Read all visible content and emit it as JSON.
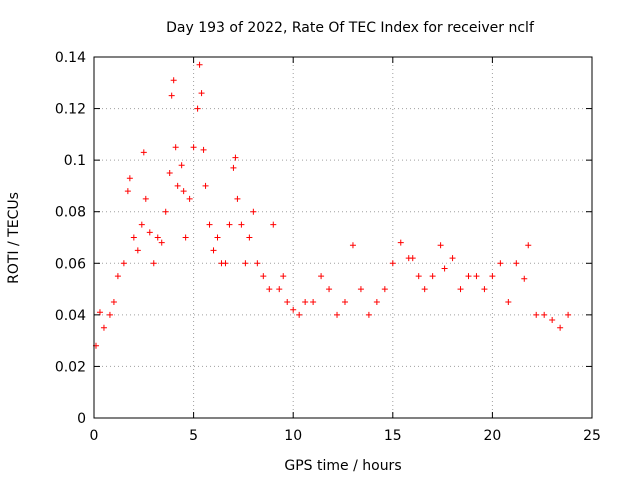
{
  "chart_data": {
    "type": "scatter",
    "title": "Day 193 of 2022, Rate Of TEC Index for receiver nclf",
    "xlabel": "GPS time / hours",
    "ylabel": "ROTI / TECUs",
    "xlim": [
      0,
      25
    ],
    "ylim": [
      0,
      0.14
    ],
    "xticks": [
      "0",
      "5",
      "10",
      "15",
      "20",
      "25"
    ],
    "yticks": [
      "0",
      "0.02",
      "0.04",
      "0.06",
      "0.08",
      "0.1",
      "0.12",
      "0.14"
    ],
    "grid": true,
    "marker": "+",
    "color": "#ff0000",
    "series": [
      {
        "x": [
          0.1,
          0.3,
          0.5,
          0.8,
          1.0,
          1.2,
          1.5,
          1.7,
          1.8,
          2.0,
          2.2,
          2.4,
          2.5,
          2.6,
          2.8,
          3.0,
          3.2,
          3.4,
          3.6,
          3.8,
          3.9,
          4.0,
          4.1,
          4.2,
          4.4,
          4.5,
          4.6,
          4.8,
          5.0,
          5.2,
          5.3,
          5.4,
          5.5,
          5.6,
          5.8,
          6.0,
          6.2,
          6.4,
          6.6,
          6.8,
          7.0,
          7.1,
          7.2,
          7.4,
          7.6,
          7.8,
          8.0,
          8.2,
          8.5,
          8.8,
          9.0,
          9.3,
          9.5,
          9.7,
          10.0,
          10.3,
          10.6,
          11.0,
          11.4,
          11.8,
          12.2,
          12.6,
          13.0,
          13.4,
          13.8,
          14.2,
          14.6,
          15.0,
          15.4,
          15.8,
          16.0,
          16.3,
          16.6,
          17.0,
          17.4,
          17.6,
          18.0,
          18.4,
          18.8,
          19.2,
          19.6,
          20.0,
          20.4,
          20.8,
          21.2,
          21.6,
          21.8,
          22.2,
          22.6,
          23.0,
          23.4,
          23.8
        ],
        "y": [
          0.028,
          0.041,
          0.035,
          0.04,
          0.045,
          0.055,
          0.06,
          0.088,
          0.093,
          0.07,
          0.065,
          0.075,
          0.103,
          0.085,
          0.072,
          0.06,
          0.07,
          0.068,
          0.08,
          0.095,
          0.125,
          0.131,
          0.105,
          0.09,
          0.098,
          0.088,
          0.07,
          0.085,
          0.105,
          0.12,
          0.137,
          0.126,
          0.104,
          0.09,
          0.075,
          0.065,
          0.07,
          0.06,
          0.06,
          0.075,
          0.097,
          0.101,
          0.085,
          0.075,
          0.06,
          0.07,
          0.08,
          0.06,
          0.055,
          0.05,
          0.075,
          0.05,
          0.055,
          0.045,
          0.042,
          0.04,
          0.045,
          0.045,
          0.055,
          0.05,
          0.04,
          0.045,
          0.067,
          0.05,
          0.04,
          0.045,
          0.05,
          0.06,
          0.068,
          0.062,
          0.062,
          0.055,
          0.05,
          0.055,
          0.067,
          0.058,
          0.062,
          0.05,
          0.055,
          0.055,
          0.05,
          0.055,
          0.06,
          0.045,
          0.06,
          0.054,
          0.067,
          0.04,
          0.04,
          0.038,
          0.035,
          0.04
        ]
      }
    ]
  }
}
